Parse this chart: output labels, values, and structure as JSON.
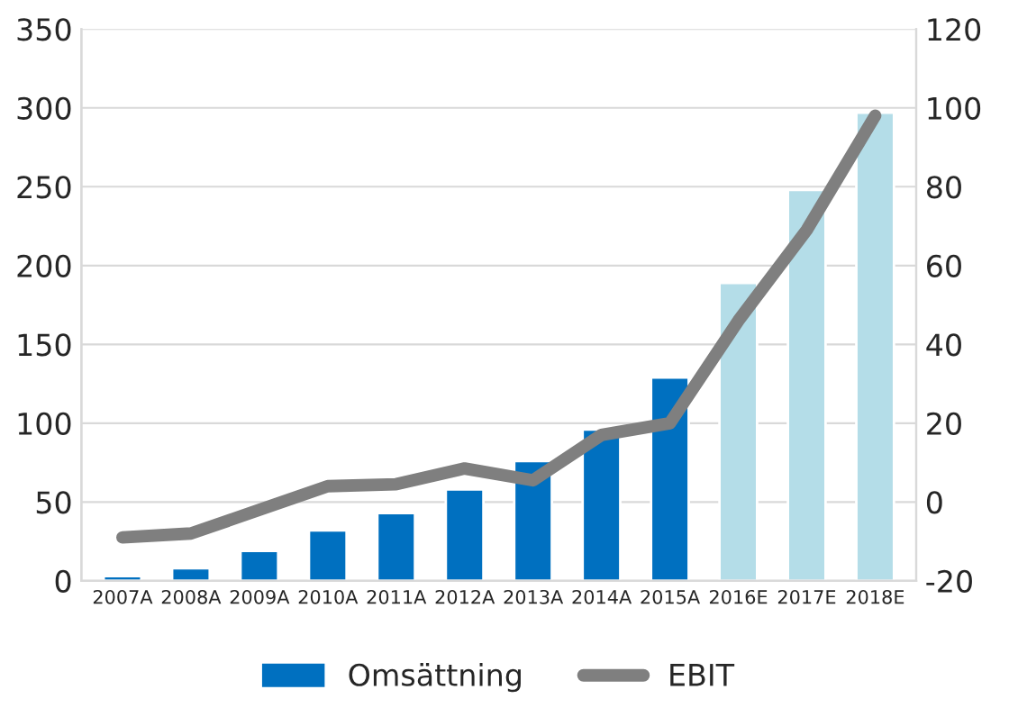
{
  "chart_data": {
    "type": "bar",
    "categories": [
      "2007A",
      "2008A",
      "2009A",
      "2010A",
      "2011A",
      "2012A",
      "2013A",
      "2014A",
      "2015A",
      "2016E",
      "2017E",
      "2018E"
    ],
    "series": [
      {
        "name": "Omsättning",
        "color": "#0070c0",
        "colors": [
          "#0070c0",
          "#0070c0",
          "#0070c0",
          "#0070c0",
          "#0070c0",
          "#0070c0",
          "#0070c0",
          "#0070c0",
          "#0070c0",
          "#b4dde8",
          "#b4dde8",
          "#b4dde8"
        ],
        "values": [
          3,
          8,
          19,
          32,
          43,
          58,
          76,
          96,
          129,
          189,
          248,
          297
        ]
      },
      {
        "name": "EBIT",
        "type": "line",
        "axis": "y2",
        "color": "#7f7f7f",
        "values": [
          -9,
          -8,
          -2,
          4,
          4.5,
          8.5,
          5.5,
          17,
          20,
          46,
          69,
          98
        ]
      }
    ],
    "ylim": [
      0,
      350
    ],
    "yticks": [
      0,
      50,
      100,
      150,
      200,
      250,
      300,
      350
    ],
    "y2lim": [
      -20,
      120
    ],
    "y2ticks": [
      -20,
      0,
      20,
      40,
      60,
      80,
      100,
      120
    ],
    "grid": "y",
    "legend": "bottom",
    "marker": "none",
    "line_style": "solid"
  }
}
